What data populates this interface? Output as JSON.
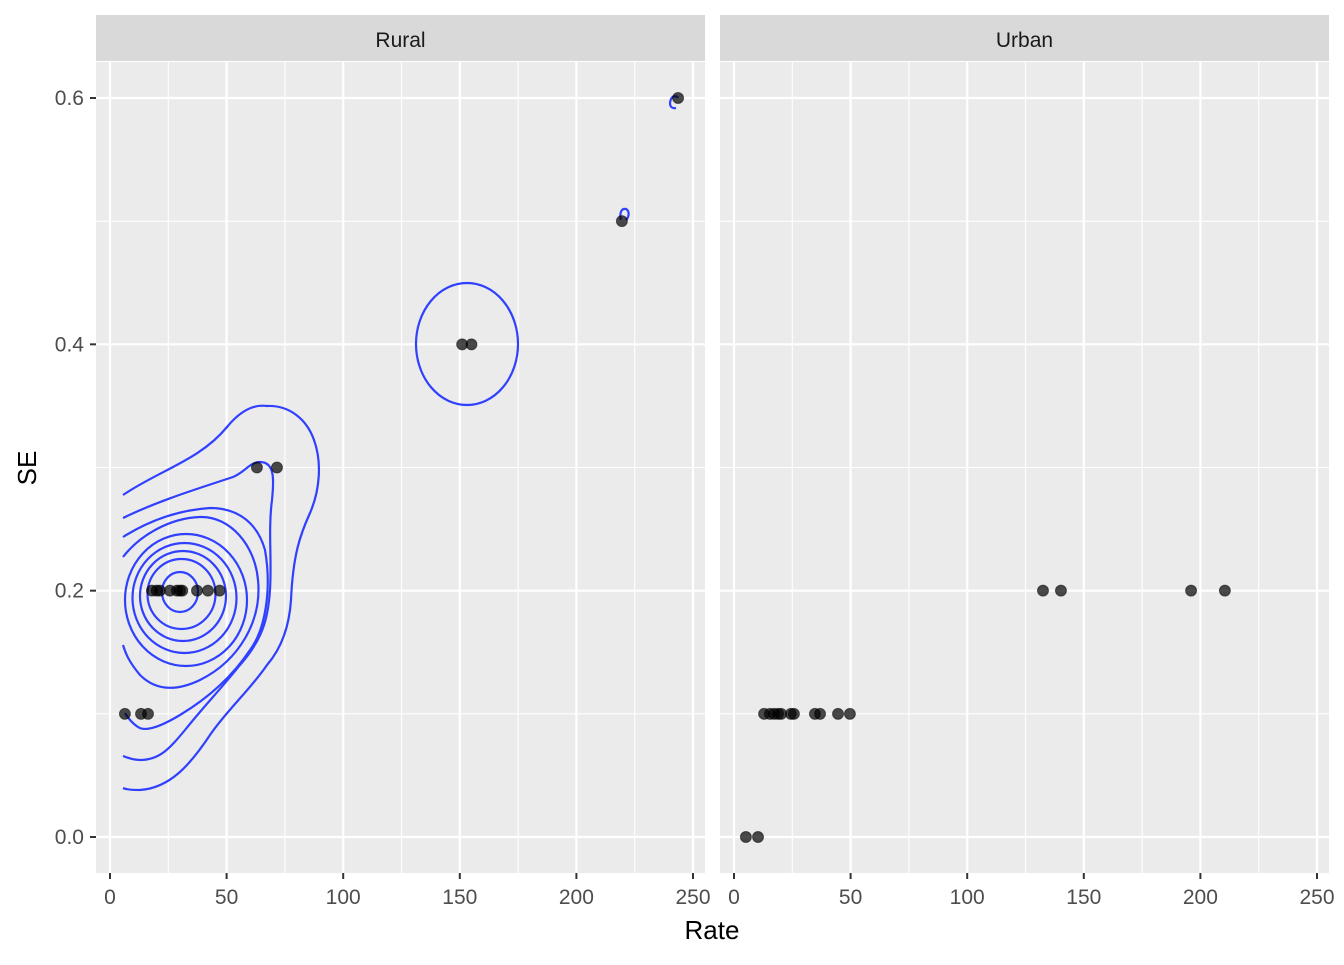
{
  "chart_data": {
    "type": "scatter",
    "xlabel": "Rate",
    "ylabel": "SE",
    "xlim": [
      -6,
      256
    ],
    "ylim": [
      -0.03,
      0.63
    ],
    "x_ticks": [
      0,
      50,
      100,
      150,
      200,
      250
    ],
    "x_tick_labels": [
      "0",
      "50",
      "100",
      "150",
      "200",
      "250"
    ],
    "y_ticks": [
      0.0,
      0.2,
      0.4,
      0.6
    ],
    "y_tick_labels": [
      "0.0",
      "0.2",
      "0.4",
      "0.6"
    ],
    "grid": true,
    "overlay": "2D density contours (Rural panel)",
    "colors": {
      "points": "#000000",
      "contour": "#3040FF",
      "panel": "#EBEBEB",
      "strip": "#D9D9D9"
    },
    "panels": [
      {
        "name": "Rural",
        "points": [
          [
            6.4,
            0.1
          ],
          [
            13.3,
            0.1
          ],
          [
            16.3,
            0.1
          ],
          [
            18,
            0.2
          ],
          [
            20,
            0.2
          ],
          [
            21.4,
            0.2
          ],
          [
            25.7,
            0.2
          ],
          [
            28.7,
            0.2
          ],
          [
            30,
            0.2
          ],
          [
            31,
            0.2
          ],
          [
            37.3,
            0.2
          ],
          [
            42,
            0.2
          ],
          [
            47,
            0.2
          ],
          [
            63,
            0.3
          ],
          [
            71.6,
            0.3
          ],
          [
            151,
            0.4
          ],
          [
            155,
            0.4
          ],
          [
            219.5,
            0.5
          ],
          [
            243.6,
            0.6
          ]
        ]
      },
      {
        "name": "Urban",
        "points": [
          [
            5.1,
            0.0
          ],
          [
            10.3,
            0.0
          ],
          [
            12.9,
            0.1
          ],
          [
            15.4,
            0.1
          ],
          [
            17.2,
            0.1
          ],
          [
            18.9,
            0.1
          ],
          [
            20.2,
            0.1
          ],
          [
            24.4,
            0.1
          ],
          [
            25.7,
            0.1
          ],
          [
            34.7,
            0.1
          ],
          [
            36.9,
            0.1
          ],
          [
            44.6,
            0.1
          ],
          [
            49.7,
            0.1
          ],
          [
            132.5,
            0.2
          ],
          [
            140.2,
            0.2
          ],
          [
            196,
            0.2
          ],
          [
            210.5,
            0.2
          ]
        ]
      }
    ]
  }
}
